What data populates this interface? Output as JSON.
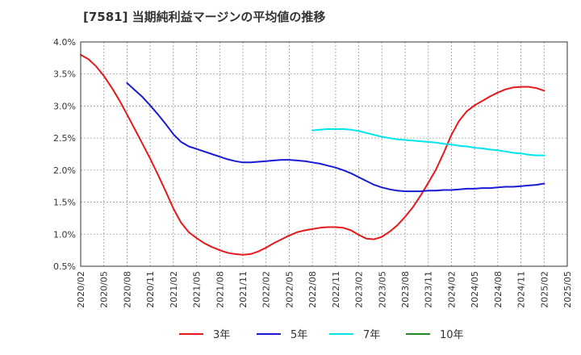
{
  "chart_data": {
    "type": "line",
    "title": "[7581]  当期純利益マージンの平均値の推移",
    "xlabel": "",
    "ylabel": "",
    "ylim": [
      0.5,
      4.0
    ],
    "y_ticks": [
      "0.5%",
      "1.0%",
      "1.5%",
      "2.0%",
      "2.5%",
      "3.0%",
      "3.5%",
      "4.0%"
    ],
    "y_tick_values": [
      0.5,
      1.0,
      1.5,
      2.0,
      2.5,
      3.0,
      3.5,
      4.0
    ],
    "x_tick_labels": [
      "2020/02",
      "2020/05",
      "2020/08",
      "2020/11",
      "2021/02",
      "2021/05",
      "2021/08",
      "2021/11",
      "2022/02",
      "2022/05",
      "2022/08",
      "2022/11",
      "2023/02",
      "2023/05",
      "2023/08",
      "2023/11",
      "2024/02",
      "2024/05",
      "2024/08",
      "2024/11",
      "2025/02",
      "2025/05"
    ],
    "grid": true,
    "legend_position": "bottom",
    "series": [
      {
        "name": "3年",
        "color": "#e41a1c",
        "x": [
          "2020/02",
          "2020/03",
          "2020/04",
          "2020/05",
          "2020/06",
          "2020/07",
          "2020/08",
          "2020/09",
          "2020/10",
          "2020/11",
          "2020/12",
          "2021/01",
          "2021/02",
          "2021/03",
          "2021/04",
          "2021/05",
          "2021/06",
          "2021/07",
          "2021/08",
          "2021/09",
          "2021/10",
          "2021/11",
          "2021/12",
          "2022/01",
          "2022/02",
          "2022/03",
          "2022/04",
          "2022/05",
          "2022/06",
          "2022/07",
          "2022/08",
          "2022/09",
          "2022/10",
          "2022/11",
          "2022/12",
          "2023/01",
          "2023/02",
          "2023/03",
          "2023/04",
          "2023/05",
          "2023/06",
          "2023/07",
          "2023/08",
          "2023/09",
          "2023/10",
          "2023/11",
          "2023/12",
          "2024/01",
          "2024/02",
          "2024/03",
          "2024/04",
          "2024/05",
          "2024/06",
          "2024/07",
          "2024/08",
          "2024/09",
          "2024/10",
          "2024/11",
          "2024/12",
          "2025/01",
          "2025/02"
        ],
        "values": [
          3.8,
          3.73,
          3.62,
          3.47,
          3.29,
          3.09,
          2.87,
          2.64,
          2.41,
          2.18,
          1.93,
          1.67,
          1.4,
          1.18,
          1.03,
          0.94,
          0.86,
          0.8,
          0.75,
          0.71,
          0.69,
          0.68,
          0.69,
          0.73,
          0.79,
          0.86,
          0.92,
          0.98,
          1.03,
          1.06,
          1.08,
          1.1,
          1.11,
          1.11,
          1.1,
          1.06,
          0.99,
          0.93,
          0.92,
          0.96,
          1.04,
          1.14,
          1.27,
          1.42,
          1.6,
          1.8,
          2.01,
          2.27,
          2.55,
          2.77,
          2.92,
          3.01,
          3.08,
          3.15,
          3.21,
          3.26,
          3.29,
          3.3,
          3.3,
          3.28,
          3.24
        ]
      },
      {
        "name": "5年",
        "color": "#1a1ad6",
        "x": [
          "2020/08",
          "2020/09",
          "2020/10",
          "2020/11",
          "2020/12",
          "2021/01",
          "2021/02",
          "2021/03",
          "2021/04",
          "2021/05",
          "2021/06",
          "2021/07",
          "2021/08",
          "2021/09",
          "2021/10",
          "2021/11",
          "2021/12",
          "2022/01",
          "2022/02",
          "2022/03",
          "2022/04",
          "2022/05",
          "2022/06",
          "2022/07",
          "2022/08",
          "2022/09",
          "2022/10",
          "2022/11",
          "2022/12",
          "2023/01",
          "2023/02",
          "2023/03",
          "2023/04",
          "2023/05",
          "2023/06",
          "2023/07",
          "2023/08",
          "2023/09",
          "2023/10",
          "2023/11",
          "2023/12",
          "2024/01",
          "2024/02",
          "2024/03",
          "2024/04",
          "2024/05",
          "2024/06",
          "2024/07",
          "2024/08",
          "2024/09",
          "2024/10",
          "2024/11",
          "2024/12",
          "2025/01",
          "2025/02"
        ],
        "values": [
          3.36,
          3.25,
          3.14,
          3.01,
          2.87,
          2.72,
          2.56,
          2.44,
          2.37,
          2.33,
          2.29,
          2.25,
          2.21,
          2.17,
          2.14,
          2.12,
          2.12,
          2.13,
          2.14,
          2.15,
          2.16,
          2.16,
          2.15,
          2.14,
          2.12,
          2.1,
          2.07,
          2.04,
          2.0,
          1.95,
          1.89,
          1.83,
          1.77,
          1.73,
          1.7,
          1.68,
          1.67,
          1.67,
          1.67,
          1.68,
          1.68,
          1.69,
          1.69,
          1.7,
          1.71,
          1.71,
          1.72,
          1.72,
          1.73,
          1.74,
          1.74,
          1.75,
          1.76,
          1.77,
          1.79
        ]
      },
      {
        "name": "7年",
        "color": "#00e5ee",
        "x": [
          "2022/08",
          "2022/09",
          "2022/10",
          "2022/11",
          "2022/12",
          "2023/01",
          "2023/02",
          "2023/03",
          "2023/04",
          "2023/05",
          "2023/06",
          "2023/07",
          "2023/08",
          "2023/09",
          "2023/10",
          "2023/11",
          "2023/12",
          "2024/01",
          "2024/02",
          "2024/03",
          "2024/04",
          "2024/05",
          "2024/06",
          "2024/07",
          "2024/08",
          "2024/09",
          "2024/10",
          "2024/11",
          "2024/12",
          "2025/01",
          "2025/02"
        ],
        "values": [
          2.62,
          2.63,
          2.64,
          2.64,
          2.64,
          2.63,
          2.61,
          2.58,
          2.55,
          2.52,
          2.5,
          2.48,
          2.47,
          2.46,
          2.45,
          2.44,
          2.43,
          2.41,
          2.4,
          2.38,
          2.37,
          2.35,
          2.34,
          2.32,
          2.31,
          2.29,
          2.27,
          2.26,
          2.24,
          2.23,
          2.23
        ]
      },
      {
        "name": "10年",
        "color": "#228b22",
        "x": [],
        "values": []
      }
    ]
  }
}
